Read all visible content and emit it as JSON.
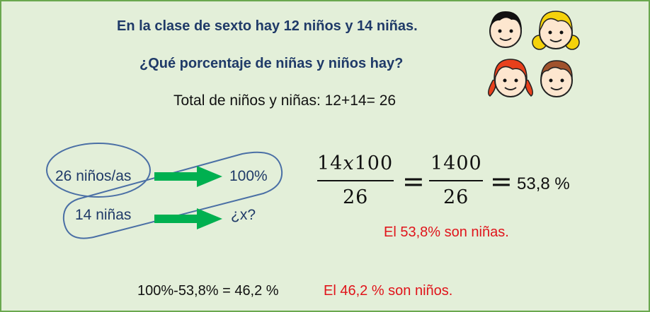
{
  "problem": {
    "statement": "En la clase de sexto hay 12 niños y 14 niñas.",
    "question": "¿Qué porcentaje de niñas y niños hay?",
    "total": "Total de niños y niñas: 12+14= 26"
  },
  "proportion": {
    "left_top": "26 niños/as",
    "right_top": "100%",
    "left_bottom": "14 niñas",
    "right_bottom": "¿x?"
  },
  "formula": {
    "num1": "14𝑥100",
    "den1": "26",
    "equals": "=",
    "num2": "1400",
    "den2": "26",
    "result": "53,8 %"
  },
  "answers": {
    "girls": "El 53,8% son niñas.",
    "boys_calc": "100%-53,8% = 46,2 %",
    "boys": "El 46,2 % son niños."
  },
  "colors": {
    "background": "#e3efd9",
    "border": "#6aa84f",
    "title": "#1f3a68",
    "answer": "#e0141b",
    "arrow": "#00b050",
    "ellipse": "#4a6fa5"
  }
}
